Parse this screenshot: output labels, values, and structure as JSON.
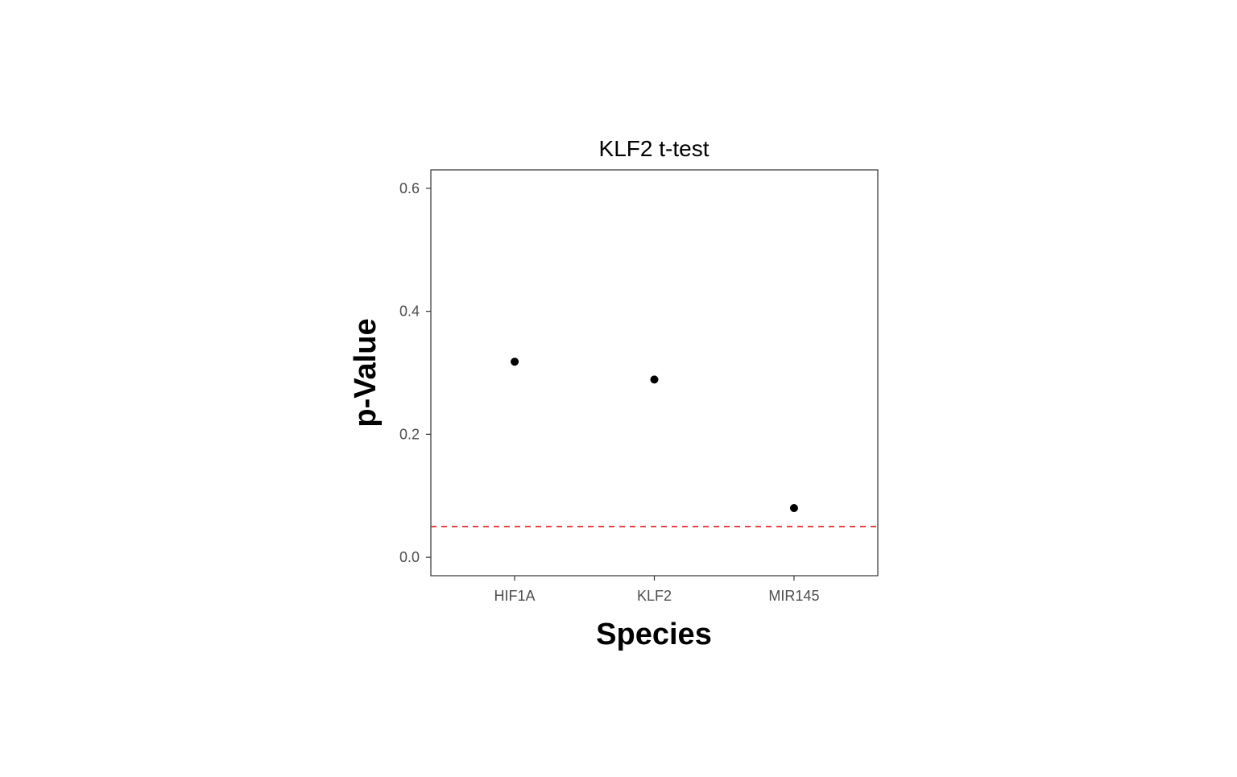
{
  "chart_data": {
    "type": "scatter",
    "title": "KLF2 t-test",
    "xlabel": "Species",
    "ylabel": "p-Value",
    "categories": [
      "HIF1A",
      "KLF2",
      "MIR145"
    ],
    "values": [
      0.318,
      0.289,
      0.08
    ],
    "ylim": [
      -0.03,
      0.63
    ],
    "yticks": [
      "0.0",
      "0.2",
      "0.4",
      "0.6"
    ],
    "grid": false,
    "legend": "none",
    "reference_line": {
      "y": 0.05,
      "style": "dashed",
      "color": "#e41a1c"
    },
    "colors": {
      "point": "#000000",
      "panel_border": "#333333",
      "tick_text": "#4d4d4d"
    }
  }
}
